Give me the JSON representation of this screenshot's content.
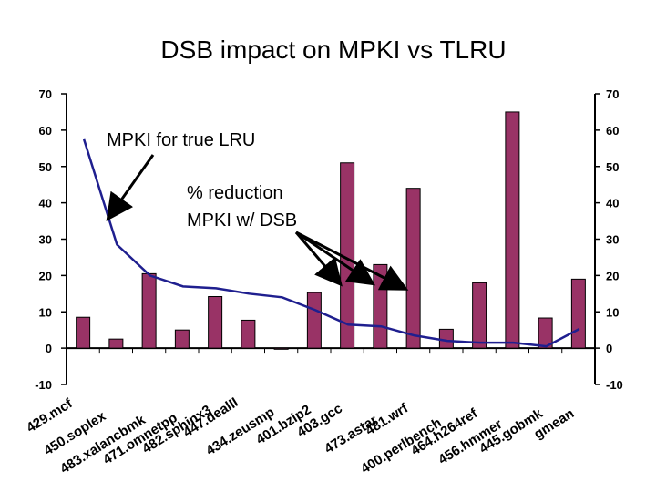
{
  "chart_data": {
    "type": "bar+line",
    "title": "DSB impact on MPKI vs TLRU",
    "categories": [
      "429.mcf",
      "450.soplex",
      "483.xalancbmk",
      "471.omnetpp",
      "482.sphinx3",
      "447.dealII",
      "434.zeusmp",
      "401.bzip2",
      "403.gcc",
      "473.astar",
      "481.wrf",
      "400.perlbench",
      "464.h264ref",
      "456.hmmer",
      "445.gobmk",
      "gmean"
    ],
    "series": [
      {
        "name": "% reduction MPKI w/ DSB",
        "kind": "bar",
        "color": "#993366",
        "values": [
          8.5,
          2.5,
          20.5,
          5,
          14.2,
          7.7,
          -0.3,
          15.3,
          51,
          23,
          44,
          5.2,
          18,
          65,
          8.3,
          19
        ]
      },
      {
        "name": "MPKI for true LRU",
        "kind": "line",
        "color": "#1f1f8f",
        "values": [
          57.5,
          28.5,
          20,
          17,
          16.5,
          15,
          14,
          10.5,
          6.5,
          6,
          3.5,
          2,
          1.5,
          1.5,
          0.5,
          5.3
        ]
      }
    ],
    "ylim": [
      -10,
      70
    ],
    "yticks": [
      -10,
      0,
      10,
      20,
      30,
      40,
      50,
      60,
      70
    ],
    "yticks_right": [
      -10,
      0,
      10,
      20,
      30,
      40,
      50,
      60,
      70
    ],
    "annotations": {
      "line_label": "MPKI for true LRU",
      "bar_label_line1": "% reduction",
      "bar_label_line2": "MPKI w/ DSB"
    },
    "xlabels_shown": [
      "429.mcf",
      "450.soplex",
      "483.xalancbmk",
      "471.omnetpp",
      "482.sphinx3",
      "447.dealII",
      "434.zeusmp",
      "401.bzip2",
      "403.gcc",
      "473.astar",
      "481.wrf",
      "400.perlbench",
      "464.h264ref",
      "456.hmmer",
      "445.gobmk",
      "gmean"
    ]
  }
}
